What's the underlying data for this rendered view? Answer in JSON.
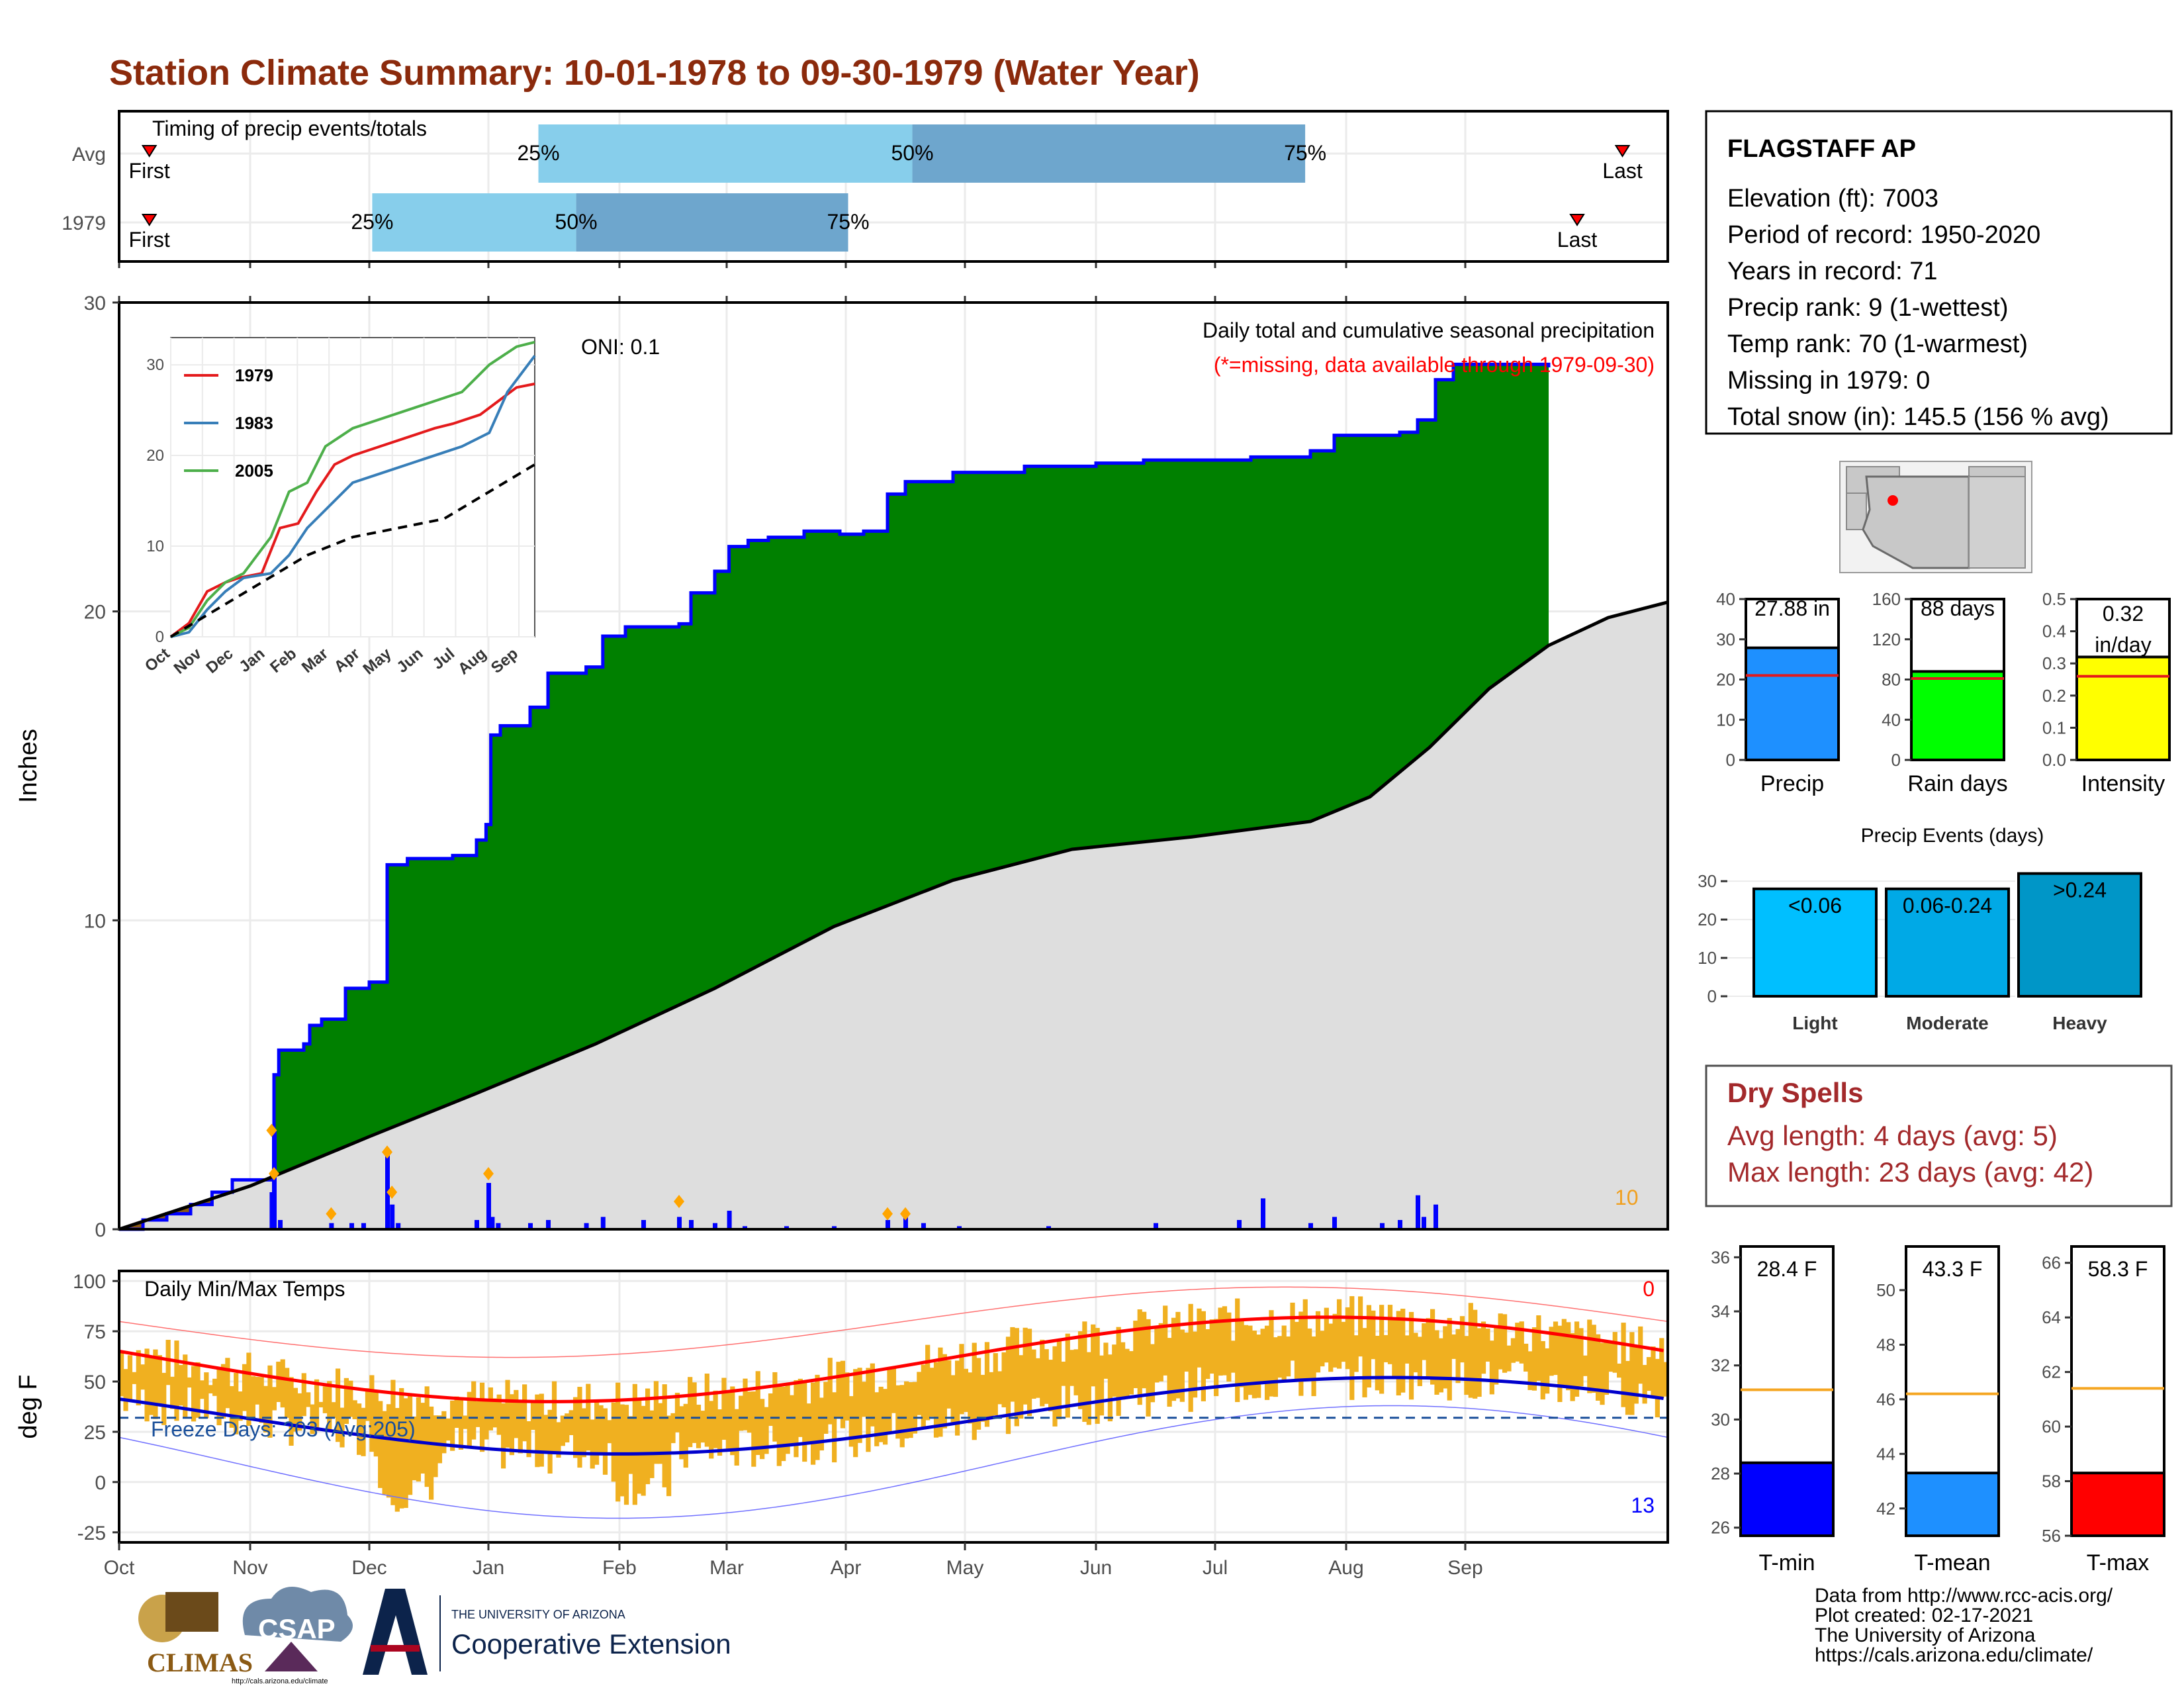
{
  "title": "Station Climate Summary: 10-01-1978 to 09-30-1979 (Water Year)",
  "colors": {
    "title": "#8b2a0c",
    "green": "#008000",
    "blue": "#0000ff",
    "brown": "#8b5a14",
    "grey": "#dedede",
    "orange": "#f0b020",
    "red": "#ff0000",
    "dry": "#a3292b"
  },
  "months": [
    "Oct",
    "Nov",
    "Dec",
    "Jan",
    "Feb",
    "Mar",
    "Apr",
    "May",
    "Jun",
    "Jul",
    "Aug",
    "Sep"
  ],
  "timing": {
    "title": "Timing of precip events/totals",
    "rows": [
      {
        "label": "Avg",
        "first_label": "First",
        "last_label": "Last",
        "p25": "25%",
        "p50": "50%",
        "p75": "75%",
        "first_day": 8,
        "p25_day": 111,
        "p50_day": 210,
        "p75_day": 314,
        "last_day": 398
      },
      {
        "label": "1979",
        "first_label": "First",
        "last_label": "Last",
        "p25": "25%",
        "p50": "50%",
        "p75": "75%",
        "first_day": 8,
        "p25_day": 67,
        "p50_day": 121,
        "p75_day": 193,
        "last_day": 386
      }
    ]
  },
  "precip": {
    "ylabel": "Inches",
    "yticks": [
      "0",
      "10",
      "20",
      "30"
    ],
    "ylim": [
      0,
      30
    ],
    "oni": "ONI: 0.1",
    "note1": "Daily total and cumulative seasonal precipitation",
    "note2": "(*=missing, data available through 1979-09-30)",
    "corner_value": "10",
    "cum_1979": [
      [
        0,
        0
      ],
      [
        20,
        0.3
      ],
      [
        40,
        0.5
      ],
      [
        60,
        0.8
      ],
      [
        78,
        1.2
      ],
      [
        95,
        1.6
      ],
      [
        128,
        1.8
      ],
      [
        130,
        5.0
      ],
      [
        134,
        5.8
      ],
      [
        155,
        6.0
      ],
      [
        160,
        6.6
      ],
      [
        170,
        6.8
      ],
      [
        190,
        7.8
      ],
      [
        210,
        8.0
      ],
      [
        225,
        11.8
      ],
      [
        242,
        12.0
      ],
      [
        280,
        12.1
      ],
      [
        300,
        12.6
      ],
      [
        308,
        13.1
      ],
      [
        312,
        16.0
      ],
      [
        320,
        16.3
      ],
      [
        345,
        16.9
      ],
      [
        360,
        18.0
      ],
      [
        392,
        18.2
      ],
      [
        406,
        19.2
      ],
      [
        425,
        19.5
      ],
      [
        470,
        19.6
      ],
      [
        480,
        20.6
      ],
      [
        500,
        21.3
      ],
      [
        512,
        22.1
      ],
      [
        528,
        22.3
      ],
      [
        545,
        22.4
      ],
      [
        575,
        22.6
      ],
      [
        605,
        22.5
      ],
      [
        625,
        22.6
      ],
      [
        645,
        23.8
      ],
      [
        660,
        24.2
      ],
      [
        700,
        24.5
      ],
      [
        760,
        24.7
      ],
      [
        800,
        24.7
      ],
      [
        820,
        24.8
      ],
      [
        860,
        24.9
      ],
      [
        910,
        24.9
      ],
      [
        950,
        25.0
      ],
      [
        975,
        25.0
      ],
      [
        1000,
        25.2
      ],
      [
        1020,
        25.7
      ],
      [
        1040,
        25.7
      ],
      [
        1075,
        25.8
      ],
      [
        1090,
        26.2
      ],
      [
        1105,
        27.5
      ],
      [
        1120,
        28.0
      ],
      [
        1163,
        28.0
      ],
      [
        1200,
        27.9
      ]
    ],
    "cum_avg": [
      [
        0,
        0
      ],
      [
        110,
        1.4
      ],
      [
        210,
        3.0
      ],
      [
        300,
        4.4
      ],
      [
        400,
        6.0
      ],
      [
        500,
        7.8
      ],
      [
        600,
        9.8
      ],
      [
        700,
        11.3
      ],
      [
        800,
        12.3
      ],
      [
        900,
        12.7
      ],
      [
        1000,
        13.2
      ],
      [
        1050,
        14.0
      ],
      [
        1100,
        15.6
      ],
      [
        1150,
        17.5
      ],
      [
        1200,
        18.9
      ],
      [
        1250,
        19.8
      ],
      [
        1300,
        20.3
      ]
    ],
    "daily_bars": [
      [
        128,
        1.2
      ],
      [
        130,
        3.2
      ],
      [
        135,
        0.3
      ],
      [
        178,
        0.2
      ],
      [
        195,
        0.2
      ],
      [
        205,
        0.2
      ],
      [
        225,
        2.5
      ],
      [
        229,
        0.8
      ],
      [
        234,
        0.2
      ],
      [
        300,
        0.3
      ],
      [
        310,
        1.5
      ],
      [
        313,
        0.4
      ],
      [
        318,
        0.2
      ],
      [
        345,
        0.2
      ],
      [
        360,
        0.3
      ],
      [
        392,
        0.2
      ],
      [
        406,
        0.4
      ],
      [
        440,
        0.3
      ],
      [
        470,
        0.4
      ],
      [
        480,
        0.3
      ],
      [
        500,
        0.2
      ],
      [
        512,
        0.6
      ],
      [
        525,
        0.1
      ],
      [
        560,
        0.1
      ],
      [
        600,
        0.1
      ],
      [
        645,
        0.3
      ],
      [
        660,
        0.5
      ],
      [
        675,
        0.2
      ],
      [
        705,
        0.1
      ],
      [
        780,
        0.1
      ],
      [
        870,
        0.2
      ],
      [
        940,
        0.3
      ],
      [
        960,
        1.0
      ],
      [
        1000,
        0.2
      ],
      [
        1020,
        0.4
      ],
      [
        1060,
        0.2
      ],
      [
        1075,
        0.3
      ],
      [
        1090,
        1.1
      ],
      [
        1095,
        0.4
      ],
      [
        1105,
        0.8
      ]
    ],
    "record_markers": [
      [
        128,
        3.2
      ],
      [
        130,
        1.8
      ],
      [
        178,
        0.5
      ],
      [
        225,
        2.5
      ],
      [
        229,
        1.2
      ],
      [
        310,
        1.8
      ],
      [
        470,
        0.9
      ],
      [
        645,
        0.5
      ],
      [
        660,
        0.5
      ]
    ],
    "inset": {
      "yticks": [
        "0",
        "10",
        "20",
        "30"
      ],
      "xticks": [
        "Oct",
        "Nov",
        "Dec",
        "Jan",
        "Feb",
        "Mar",
        "Apr",
        "May",
        "Jun",
        "Jul",
        "Aug",
        "Sep"
      ],
      "series": [
        {
          "name": "1979",
          "color": "#e41a1c",
          "points": [
            [
              0,
              0
            ],
            [
              20,
              1.5
            ],
            [
              40,
              5
            ],
            [
              60,
              6
            ],
            [
              75,
              6.5
            ],
            [
              100,
              7
            ],
            [
              120,
              12
            ],
            [
              140,
              12.5
            ],
            [
              160,
              16
            ],
            [
              180,
              19
            ],
            [
              200,
              20
            ],
            [
              230,
              21
            ],
            [
              260,
              22
            ],
            [
              290,
              23
            ],
            [
              310,
              23.5
            ],
            [
              340,
              24.5
            ],
            [
              360,
              26
            ],
            [
              380,
              27.5
            ],
            [
              400,
              27.9
            ]
          ]
        },
        {
          "name": "1983",
          "color": "#377eb8",
          "points": [
            [
              0,
              0
            ],
            [
              20,
              0.5
            ],
            [
              40,
              3
            ],
            [
              60,
              5
            ],
            [
              80,
              6.5
            ],
            [
              110,
              7
            ],
            [
              130,
              9
            ],
            [
              150,
              12
            ],
            [
              170,
              14
            ],
            [
              200,
              17
            ],
            [
              230,
              18
            ],
            [
              260,
              19
            ],
            [
              290,
              20
            ],
            [
              320,
              21
            ],
            [
              350,
              22.5
            ],
            [
              370,
              27
            ],
            [
              400,
              31
            ]
          ]
        },
        {
          "name": "2005",
          "color": "#4daf4a",
          "points": [
            [
              0,
              0
            ],
            [
              20,
              1
            ],
            [
              40,
              4
            ],
            [
              60,
              6
            ],
            [
              80,
              7
            ],
            [
              110,
              11
            ],
            [
              130,
              16
            ],
            [
              150,
              17
            ],
            [
              170,
              21
            ],
            [
              200,
              23
            ],
            [
              230,
              24
            ],
            [
              260,
              25
            ],
            [
              290,
              26
            ],
            [
              320,
              27
            ],
            [
              350,
              30
            ],
            [
              380,
              32
            ],
            [
              400,
              32.5
            ]
          ]
        }
      ],
      "avg_points": [
        [
          0,
          0
        ],
        [
          50,
          3
        ],
        [
          100,
          6
        ],
        [
          150,
          9
        ],
        [
          200,
          11
        ],
        [
          250,
          12
        ],
        [
          300,
          13
        ],
        [
          350,
          16
        ],
        [
          400,
          19
        ]
      ]
    }
  },
  "temps": {
    "title": "Daily Min/Max Temps",
    "ylabel": "deg F",
    "yticks": [
      "100",
      "75",
      "50",
      "25",
      "0",
      "-25"
    ],
    "ylim": [
      -30,
      105
    ],
    "freeze_label": "Freeze Days: 203 (Avg:205)",
    "corner_top": "0",
    "corner_bottom": "13"
  },
  "station": {
    "name": "FLAGSTAFF AP",
    "lines": [
      "Elevation (ft): 7003",
      "Period of record: 1950-2020",
      "Years in record: 71",
      "Precip rank: 9 (1-wettest)",
      "Temp rank: 70 (1-warmest)",
      "Missing in 1979: 0",
      "Total snow (in): 145.5 (156 % avg)"
    ]
  },
  "mini_bars": [
    {
      "label": "Precip",
      "value": 27.88,
      "avg": 21,
      "max": 40,
      "value_label": "27.88 in",
      "ticks": [
        "0",
        "10",
        "20",
        "30",
        "40"
      ],
      "color": "#1e90ff"
    },
    {
      "label": "Rain days",
      "value": 88,
      "avg": 81,
      "max": 160,
      "value_label": "88 days",
      "ticks": [
        "0",
        "40",
        "80",
        "120",
        "160"
      ],
      "color": "#00ff00"
    },
    {
      "label": "Intensity",
      "value": 0.32,
      "avg": 0.26,
      "max": 0.5,
      "value_label": "0.32 in/day",
      "ticks": [
        "0.0",
        "0.1",
        "0.2",
        "0.3",
        "0.4",
        "0.5"
      ],
      "color": "#ffff00"
    }
  ],
  "events": {
    "title": "Precip Events (days)",
    "ticks": [
      "0",
      "10",
      "20",
      "30"
    ],
    "bars": [
      {
        "cat": "Light",
        "value": 28,
        "label": "<0.06",
        "color": "#00bfff"
      },
      {
        "cat": "Moderate",
        "value": 28,
        "label": "0.06-0.24",
        "color": "#00a9e6"
      },
      {
        "cat": "Heavy",
        "value": 32,
        "label": ">0.24",
        "color": "#0096c7"
      }
    ]
  },
  "dry": {
    "title": "Dry Spells",
    "avg_line": "Avg length: 4 days (avg: 5)",
    "max_line": "Max length: 23 days (avg: 42)"
  },
  "temp_bars": [
    {
      "label": "T-min",
      "value": 28.4,
      "avg": 31.1,
      "value_label": "28.4 F",
      "ticks": [
        "26",
        "28",
        "30",
        "32",
        "34",
        "36"
      ],
      "min": 25.7,
      "max": 36.4,
      "color": "#0000ff"
    },
    {
      "label": "T-mean",
      "value": 43.3,
      "avg": 46.2,
      "value_label": "43.3 F",
      "ticks": [
        "42",
        "44",
        "46",
        "48",
        "50"
      ],
      "min": 41.0,
      "max": 51.6,
      "color": "#1e90ff"
    },
    {
      "label": "T-max",
      "value": 58.3,
      "avg": 61.4,
      "value_label": "58.3 F",
      "ticks": [
        "56",
        "58",
        "60",
        "62",
        "64",
        "66"
      ],
      "min": 56.0,
      "max": 66.6,
      "color": "#ff0000"
    }
  ],
  "logos": {
    "climas": "CLIMAS",
    "csap": "CSAP",
    "csap_url": "http://cals.arizona.edu/climate",
    "ua_small": "THE UNIVERSITY OF ARIZONA",
    "ua_big": "Cooperative Extension"
  },
  "footer": [
    "Data from http://www.rcc-acis.org/",
    "Plot created: 02-17-2021",
    "The University of Arizona",
    "https://cals.arizona.edu/climate/"
  ]
}
